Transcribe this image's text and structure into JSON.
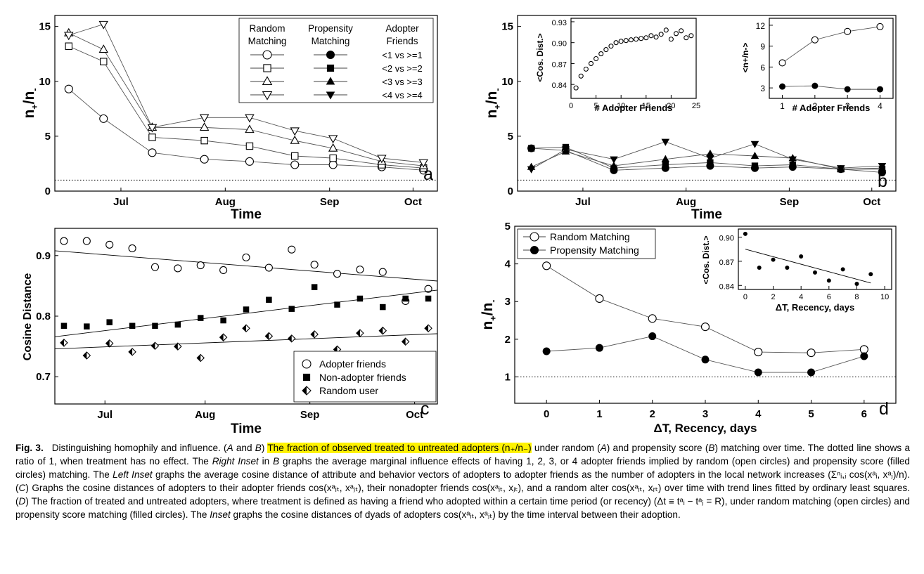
{
  "months": [
    "Jul",
    "Aug",
    "Sep",
    "Oct"
  ],
  "time_label": "Time",
  "ratio_label": "n",
  "ratio_label_plus": "+",
  "ratio_label_mid": "/n",
  "ratio_label_minus": "-",
  "legend_a": {
    "col1": [
      "Random",
      "Matching"
    ],
    "col2": [
      "Propensity",
      "Matching"
    ],
    "col3": [
      "Adopter",
      "Friends"
    ],
    "rows": [
      "<1 vs >=1",
      "<2 vs >=2",
      "<3 vs >=3",
      "<4 vs >=4"
    ]
  },
  "inset_b_left": {
    "ylabel": "<Cos. Dist.>",
    "xlabel": "# Adopter Friends"
  },
  "inset_b_right": {
    "ylabel": "<n+/n->",
    "xlabel": "# Adopter Friends"
  },
  "legend_c": [
    "Adopter friends",
    "Non-adopter friends",
    "Random user"
  ],
  "legend_d": [
    "Random Matching",
    "Propensity Matching"
  ],
  "inset_d": {
    "ylabel": "<Cos. Dist.>",
    "xlabel": "ΔT, Recency, days"
  },
  "c_ylabel": "Cosine Distance",
  "d_xlabel": "ΔT, Recency, days",
  "panel_letters": [
    "a",
    "b",
    "c",
    "d"
  ],
  "chart_data": [
    {
      "panel": "a",
      "type": "line",
      "xlabel": "Time",
      "ylabel": "n+/n-",
      "ylim": [
        0,
        16
      ],
      "yticks": [
        0,
        5,
        10,
        15
      ],
      "xticks": [
        "Jul",
        "Aug",
        "Sep",
        "Oct"
      ],
      "reference_line": 1,
      "series": [
        {
          "name": "<1 vs >=1",
          "marker": "circle",
          "values": [
            9.3,
            6.6,
            3.5,
            2.9,
            2.7,
            2.4,
            2.4,
            2.2,
            1.9
          ]
        },
        {
          "name": "<2 vs >=2",
          "marker": "square",
          "values": [
            13.2,
            11.8,
            4.9,
            4.6,
            4.1,
            3.2,
            3.0,
            2.4,
            2.1
          ]
        },
        {
          "name": "<3 vs >=3",
          "marker": "triangle",
          "values": [
            14.4,
            12.9,
            5.8,
            5.8,
            5.6,
            4.6,
            3.9,
            2.7,
            2.3
          ]
        },
        {
          "name": "<4 vs >=4",
          "marker": "triangle-down",
          "values": [
            14.2,
            15.2,
            5.8,
            6.7,
            6.7,
            5.5,
            4.8,
            3.0,
            2.6
          ]
        }
      ]
    },
    {
      "panel": "b",
      "type": "line",
      "xlabel": "Time",
      "ylabel": "n+/n-",
      "ylim": [
        0,
        16
      ],
      "yticks": [
        0,
        5,
        10,
        15
      ],
      "xticks": [
        "Jul",
        "Aug",
        "Sep",
        "Oct"
      ],
      "reference_line": 1,
      "series": [
        {
          "name": "<1 vs >=1",
          "marker": "circle",
          "values": [
            3.9,
            3.7,
            1.9,
            2.1,
            2.3,
            2.1,
            2.2,
            2.0,
            1.7
          ]
        },
        {
          "name": "<2 vs >=2",
          "marker": "square",
          "values": [
            3.9,
            4.0,
            2.1,
            2.4,
            2.6,
            2.3,
            2.4,
            2.0,
            2.0
          ]
        },
        {
          "name": "<3 vs >=3",
          "marker": "triangle",
          "values": [
            2.2,
            3.6,
            2.3,
            2.9,
            3.4,
            3.2,
            3.0,
            2.0,
            2.1
          ]
        },
        {
          "name": "<4 vs >=4",
          "marker": "triangle-down",
          "values": [
            2.0,
            3.8,
            2.9,
            4.5,
            3.0,
            4.3,
            2.9,
            2.1,
            2.3
          ]
        }
      ]
    },
    {
      "panel": "b-left-inset",
      "type": "scatter",
      "xlabel": "# Adopter Friends",
      "ylabel": "<Cos. Dist.>",
      "xlim": [
        0,
        25
      ],
      "ylim": [
        0.82,
        0.935
      ],
      "xticks": [
        0,
        5,
        10,
        15,
        20,
        25
      ],
      "yticks": [
        0.84,
        0.87,
        0.9,
        0.93
      ],
      "x": [
        1,
        2,
        3,
        4,
        5,
        6,
        7,
        8,
        9,
        10,
        11,
        12,
        13,
        14,
        15,
        16,
        17,
        18,
        19,
        20,
        21,
        22,
        23,
        24
      ],
      "y": [
        0.835,
        0.852,
        0.862,
        0.87,
        0.877,
        0.884,
        0.89,
        0.895,
        0.9,
        0.902,
        0.903,
        0.904,
        0.905,
        0.906,
        0.907,
        0.91,
        0.908,
        0.912,
        0.918,
        0.905,
        0.913,
        0.917,
        0.907,
        0.91
      ]
    },
    {
      "panel": "b-right-inset",
      "type": "line",
      "xlabel": "# Adopter Friends",
      "ylabel": "<n+/n->",
      "xlim": [
        0.6,
        4.4
      ],
      "ylim": [
        1.5,
        13
      ],
      "xticks": [
        1,
        2,
        3,
        4
      ],
      "yticks": [
        3,
        6,
        9,
        12
      ],
      "series": [
        {
          "name": "Random Matching",
          "marker": "circle-open",
          "x": [
            1,
            2,
            3,
            4
          ],
          "y": [
            6.6,
            9.9,
            11.1,
            11.8
          ]
        },
        {
          "name": "Propensity Matching",
          "marker": "circle-filled",
          "x": [
            1,
            2,
            3,
            4
          ],
          "y": [
            3.2,
            3.3,
            2.8,
            2.8
          ]
        }
      ]
    },
    {
      "panel": "c",
      "type": "scatter",
      "xlabel": "Time",
      "ylabel": "Cosine Distance",
      "ylim": [
        0.655,
        0.945
      ],
      "yticks": [
        0.7,
        0.8,
        0.9
      ],
      "xticks": [
        "Jul",
        "Aug",
        "Sep",
        "Oct"
      ],
      "series": [
        {
          "name": "Adopter friends",
          "marker": "circle-open",
          "values": [
            0.924,
            0.924,
            0.918,
            0.912,
            0.881,
            0.879,
            0.884,
            0.876,
            0.897,
            0.88,
            0.91,
            0.885,
            0.87,
            0.877,
            0.873,
            0.825,
            0.845
          ],
          "trend": [
            0.908,
            0.858
          ]
        },
        {
          "name": "Non-adopter friends",
          "marker": "square",
          "values": [
            0.784,
            0.783,
            0.79,
            0.784,
            0.784,
            0.786,
            0.797,
            0.793,
            0.811,
            0.827,
            0.812,
            0.848,
            0.819,
            0.829,
            0.815,
            0.829,
            0.829
          ],
          "trend": [
            0.766,
            0.843
          ]
        },
        {
          "name": "Random user",
          "marker": "diamond-half",
          "values": [
            0.756,
            0.735,
            0.755,
            0.741,
            0.751,
            0.75,
            0.731,
            0.765,
            0.78,
            0.767,
            0.763,
            0.77,
            0.745,
            0.772,
            0.776,
            0.758,
            0.78
          ],
          "trend": [
            0.746,
            0.771
          ]
        }
      ]
    },
    {
      "panel": "d",
      "type": "line",
      "xlabel": "ΔT, Recency, days",
      "ylabel": "n+/n-",
      "xlim": [
        -0.6,
        6.6
      ],
      "ylim": [
        0.3,
        5
      ],
      "xticks": [
        0,
        1,
        2,
        3,
        4,
        5,
        6
      ],
      "yticks": [
        1,
        2,
        3,
        4,
        5
      ],
      "reference_line": 1,
      "series": [
        {
          "name": "Random Matching",
          "marker": "circle-open",
          "x": [
            0,
            1,
            2,
            3,
            4,
            5,
            6
          ],
          "y": [
            3.95,
            3.08,
            2.55,
            2.33,
            1.66,
            1.64,
            1.73
          ]
        },
        {
          "name": "Propensity Matching",
          "marker": "circle-filled",
          "x": [
            0,
            1,
            2,
            3,
            4,
            5,
            6
          ],
          "y": [
            1.68,
            1.77,
            2.08,
            1.46,
            1.12,
            1.12,
            1.55
          ]
        }
      ]
    },
    {
      "panel": "d-inset",
      "type": "scatter",
      "xlabel": "ΔT, Recency, days",
      "ylabel": "<Cos. Dist.>",
      "xlim": [
        -0.5,
        10.5
      ],
      "ylim": [
        0.835,
        0.91
      ],
      "xticks": [
        0,
        2,
        4,
        6,
        8,
        10
      ],
      "yticks": [
        0.84,
        0.87,
        0.9
      ],
      "x": [
        0,
        1,
        2,
        3,
        4,
        5,
        6,
        7,
        8,
        9
      ],
      "y": [
        0.904,
        0.862,
        0.872,
        0.862,
        0.876,
        0.856,
        0.846,
        0.86,
        0.842,
        0.854
      ],
      "trend": [
        0.885,
        0.843
      ]
    }
  ],
  "caption": {
    "label": "Fig. 3.",
    "parts": [
      "Distinguishing homophily and influence. (",
      "A",
      " and ",
      "B",
      ") ",
      "The fraction of observed treated to untreated adopters (n₊/n₋)",
      " under random (",
      "A",
      ") and propensity score (",
      "B",
      ") matching over time. The dotted line shows a ratio of 1, when treatment has no effect. The ",
      "Right Inset",
      " in ",
      "B",
      " graphs the average marginal influence effects of having 1, 2, 3, or 4 adopter friends implied by random (open circles) and propensity score (filled circles) matching. The ",
      "Left Inset",
      " graphs the average cosine distance of attribute and behavior vectors of adopters to adopter friends as the number of adopters in the local network increases (Σⁿᵢ,ⱼ cos(xᵃᵢ, xᵃⱼ)/n). (",
      "C",
      ") Graphs the cosine distances of adopters to their adopter friends cos(xᵃᵢₜ, xᵃⱼₜ), their nonadopter friends cos(xᵃᵢₜ, xⱼₜ), and a random alter cos(xᵃᵢₜ, xᵣₜ) over time with trend lines fitted by ordinary least squares. (",
      "D",
      ") The fraction of treated and untreated adopters, where treatment is defined as having a friend who adopted within a certain time period (or recency) (Δt ≡ tᵃᵢ − tᵃⱼ = R), under random matching (open circles) and propensity score matching (filled circles). The ",
      "Inset",
      " graphs the cosine distances of dyads of adopters cos(xᵃᵢₜ, xᵃⱼₜ) by the time interval between their adoption."
    ],
    "styles": [
      "n",
      "i",
      "n",
      "i",
      "n",
      "h",
      "n",
      "i",
      "n",
      "i",
      "n",
      "i",
      "n",
      "i",
      "n",
      "i",
      "n",
      "i",
      "n",
      "i",
      "n",
      "i",
      "n"
    ]
  }
}
